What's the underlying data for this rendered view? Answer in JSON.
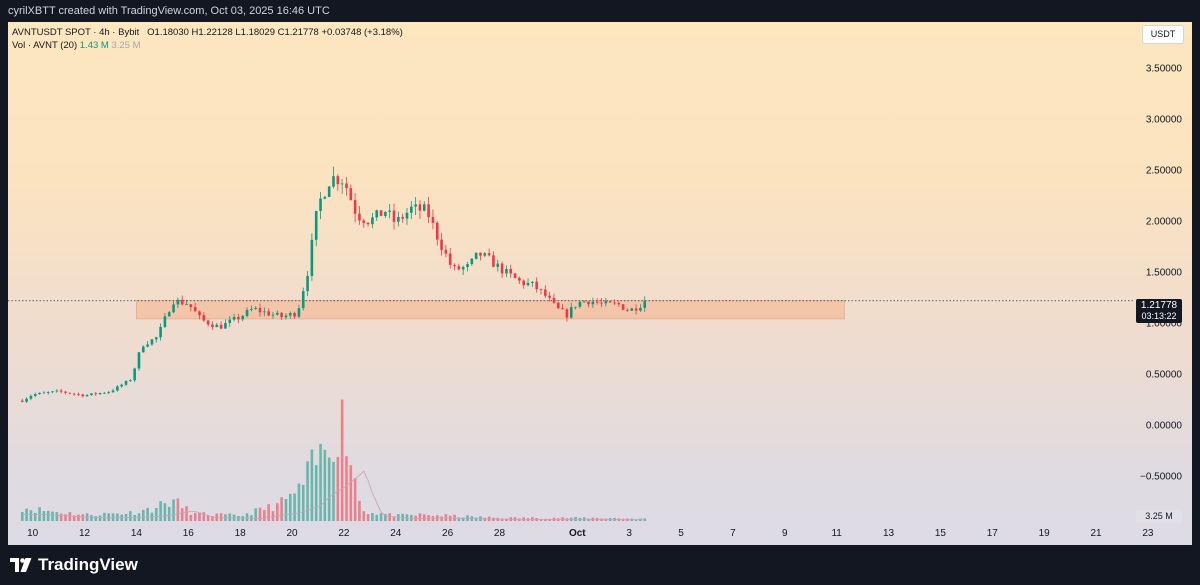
{
  "header": {
    "caption": "cyrilXBTT created with TradingView.com, Oct 03, 2025 16:46 UTC"
  },
  "legend": {
    "symbol": "AVNTUSDT SPOT · 4h · Bybit",
    "open": "O1.18030",
    "high": "H1.22128",
    "low": "L1.18029",
    "close": "C1.21778",
    "change": "+0.03748 (+3.18%)",
    "vol_label": "Vol · AVNT (20)",
    "vol_value": "1.43 M",
    "vol_ma": "3.25 M"
  },
  "currency_button": "USDT",
  "current_price": {
    "price": "1.21778",
    "countdown": "03:13:22"
  },
  "volume_tag": "3.25 M",
  "footer": {
    "brand": "TradingView"
  },
  "colors": {
    "up": "#089981",
    "down": "#f23645",
    "zone": "#f4b08c",
    "background_top": "#fde7bf",
    "background_bottom": "#dddbe6"
  },
  "chart_data": {
    "type": "candlestick",
    "interval": "4h",
    "y_ticks": [
      "3.50000",
      "3.00000",
      "2.50000",
      "2.00000",
      "1.50000",
      "1.00000",
      "0.50000",
      "0.00000",
      "−0.50000"
    ],
    "y_tick_values": [
      3.5,
      3.0,
      2.5,
      2.0,
      1.5,
      1.0,
      0.5,
      0.0,
      -0.5
    ],
    "ylim": [
      -0.95,
      3.95
    ],
    "x_ticks": [
      "10",
      "12",
      "14",
      "16",
      "18",
      "20",
      "22",
      "24",
      "26",
      "28",
      "Oct",
      "3",
      "5",
      "7",
      "9",
      "11",
      "13",
      "15",
      "17",
      "19",
      "21",
      "23"
    ],
    "x_tick_days": [
      10,
      12,
      14,
      16,
      18,
      20,
      22,
      24,
      26,
      28,
      31,
      33,
      35,
      37,
      39,
      41,
      43,
      45,
      47,
      49,
      51,
      53
    ],
    "x_unit": "day (September 2025, continuing past Sep 30)",
    "xlim": [
      9.05,
      54.7
    ],
    "support_zone": {
      "low": 1.04,
      "high": 1.22,
      "from_day": 14.0,
      "to_day": 41.3
    },
    "last_price_line": 1.21778,
    "price_anchors": [
      [
        9.6,
        0.24
      ],
      [
        10.0,
        0.3
      ],
      [
        11.0,
        0.33
      ],
      [
        12.0,
        0.29
      ],
      [
        13.0,
        0.33
      ],
      [
        13.8,
        0.45
      ],
      [
        14.2,
        0.78
      ],
      [
        14.8,
        0.86
      ],
      [
        15.4,
        1.22
      ],
      [
        16.0,
        1.19
      ],
      [
        16.5,
        1.03
      ],
      [
        17.2,
        0.96
      ],
      [
        18.0,
        1.06
      ],
      [
        18.5,
        1.14
      ],
      [
        19.0,
        1.1
      ],
      [
        19.6,
        1.06
      ],
      [
        20.2,
        1.1
      ],
      [
        20.6,
        1.5
      ],
      [
        21.0,
        2.15
      ],
      [
        21.5,
        2.43
      ],
      [
        22.0,
        2.4
      ],
      [
        22.5,
        2.06
      ],
      [
        23.0,
        2.0
      ],
      [
        23.6,
        2.1
      ],
      [
        24.0,
        1.98
      ],
      [
        24.6,
        2.12
      ],
      [
        25.2,
        2.1
      ],
      [
        25.6,
        1.85
      ],
      [
        26.2,
        1.52
      ],
      [
        26.8,
        1.55
      ],
      [
        27.2,
        1.68
      ],
      [
        27.6,
        1.62
      ],
      [
        28.2,
        1.5
      ],
      [
        28.8,
        1.4
      ],
      [
        29.3,
        1.37
      ],
      [
        29.8,
        1.26
      ],
      [
        30.2,
        1.14
      ],
      [
        30.6,
        1.08
      ],
      [
        31.0,
        1.2
      ],
      [
        31.5,
        1.22
      ],
      [
        32.0,
        1.18
      ],
      [
        32.6,
        1.18
      ],
      [
        33.0,
        1.12
      ],
      [
        33.7,
        1.21778
      ]
    ],
    "volume_anchors": [
      [
        9.6,
        0.13
      ],
      [
        10.5,
        0.1
      ],
      [
        12.0,
        0.06
      ],
      [
        13.8,
        0.08
      ],
      [
        14.6,
        0.12
      ],
      [
        15.4,
        0.2
      ],
      [
        16.2,
        0.07
      ],
      [
        18.0,
        0.05
      ],
      [
        19.5,
        0.16
      ],
      [
        20.3,
        0.3
      ],
      [
        20.7,
        0.5
      ],
      [
        21.1,
        0.62
      ],
      [
        21.5,
        0.78
      ],
      [
        21.8,
        0.9
      ],
      [
        22.0,
        1.0
      ],
      [
        22.3,
        0.55
      ],
      [
        22.7,
        0.1
      ],
      [
        24.0,
        0.05
      ],
      [
        25.0,
        0.06
      ],
      [
        26.0,
        0.05
      ],
      [
        28.0,
        0.03
      ],
      [
        30.5,
        0.03
      ],
      [
        32.0,
        0.03
      ],
      [
        33.7,
        0.02
      ]
    ],
    "volume_axis_max": 1.0
  }
}
